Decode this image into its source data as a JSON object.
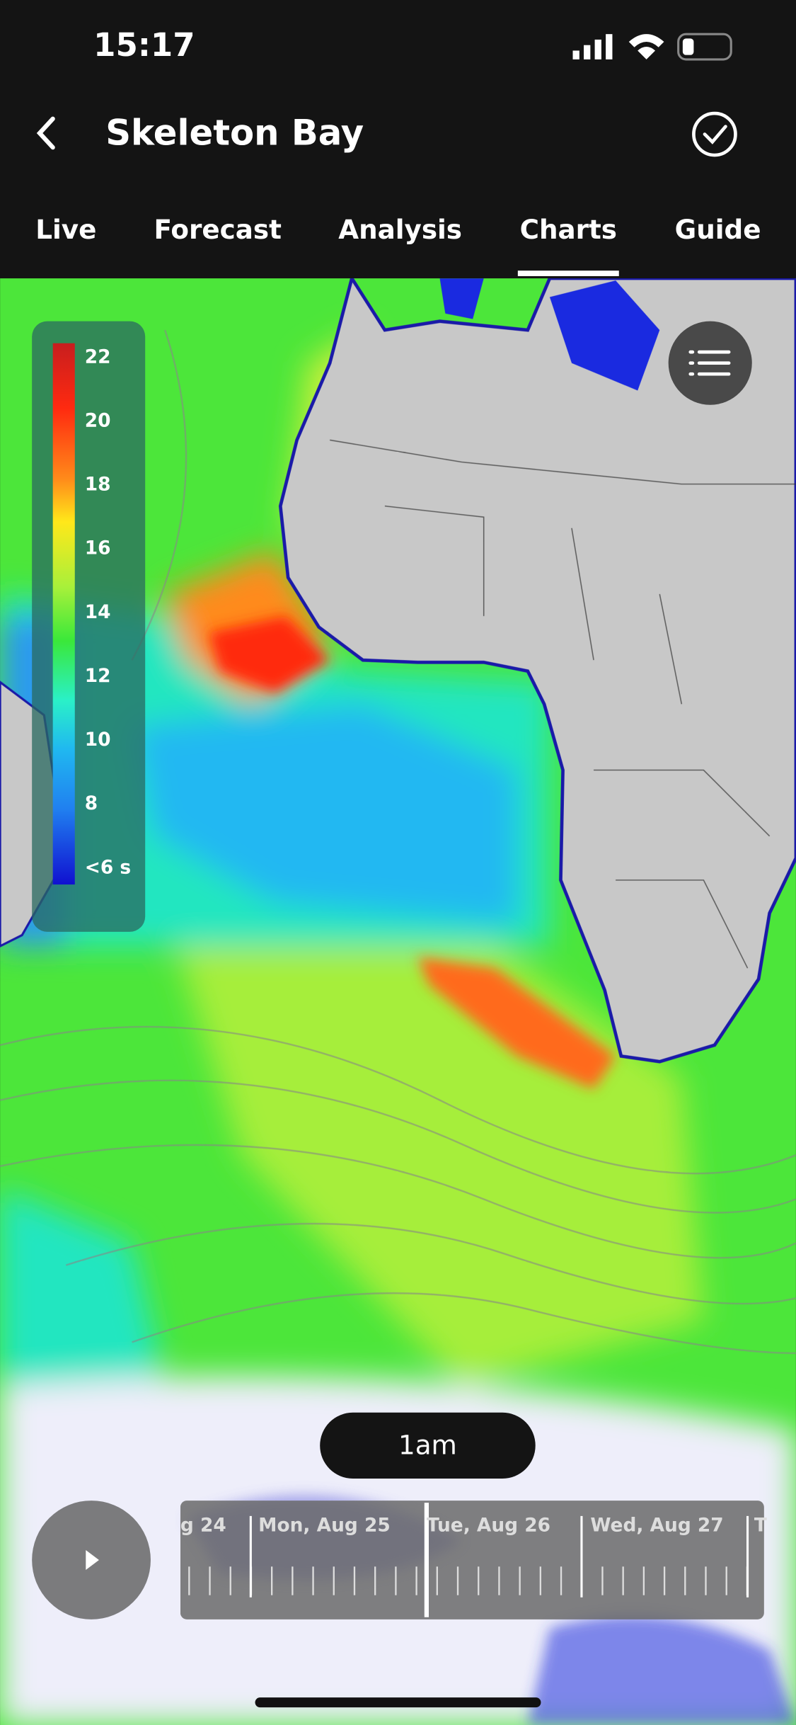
{
  "status_bar": {
    "time": "15:17"
  },
  "header": {
    "title": "Skeleton Bay"
  },
  "tabs": [
    "Live",
    "Forecast",
    "Analysis",
    "Charts",
    "Guide"
  ],
  "legend": {
    "labels": [
      "22",
      "20",
      "18",
      "16",
      "14",
      "12",
      "10",
      "8",
      "<6 s"
    ]
  },
  "time_pill": {
    "label": "1am"
  },
  "timeline": {
    "labels": [
      "g 24",
      "Mon, Aug 25",
      "Tue, Aug 26",
      "Wed, Aug 27",
      "T"
    ]
  }
}
